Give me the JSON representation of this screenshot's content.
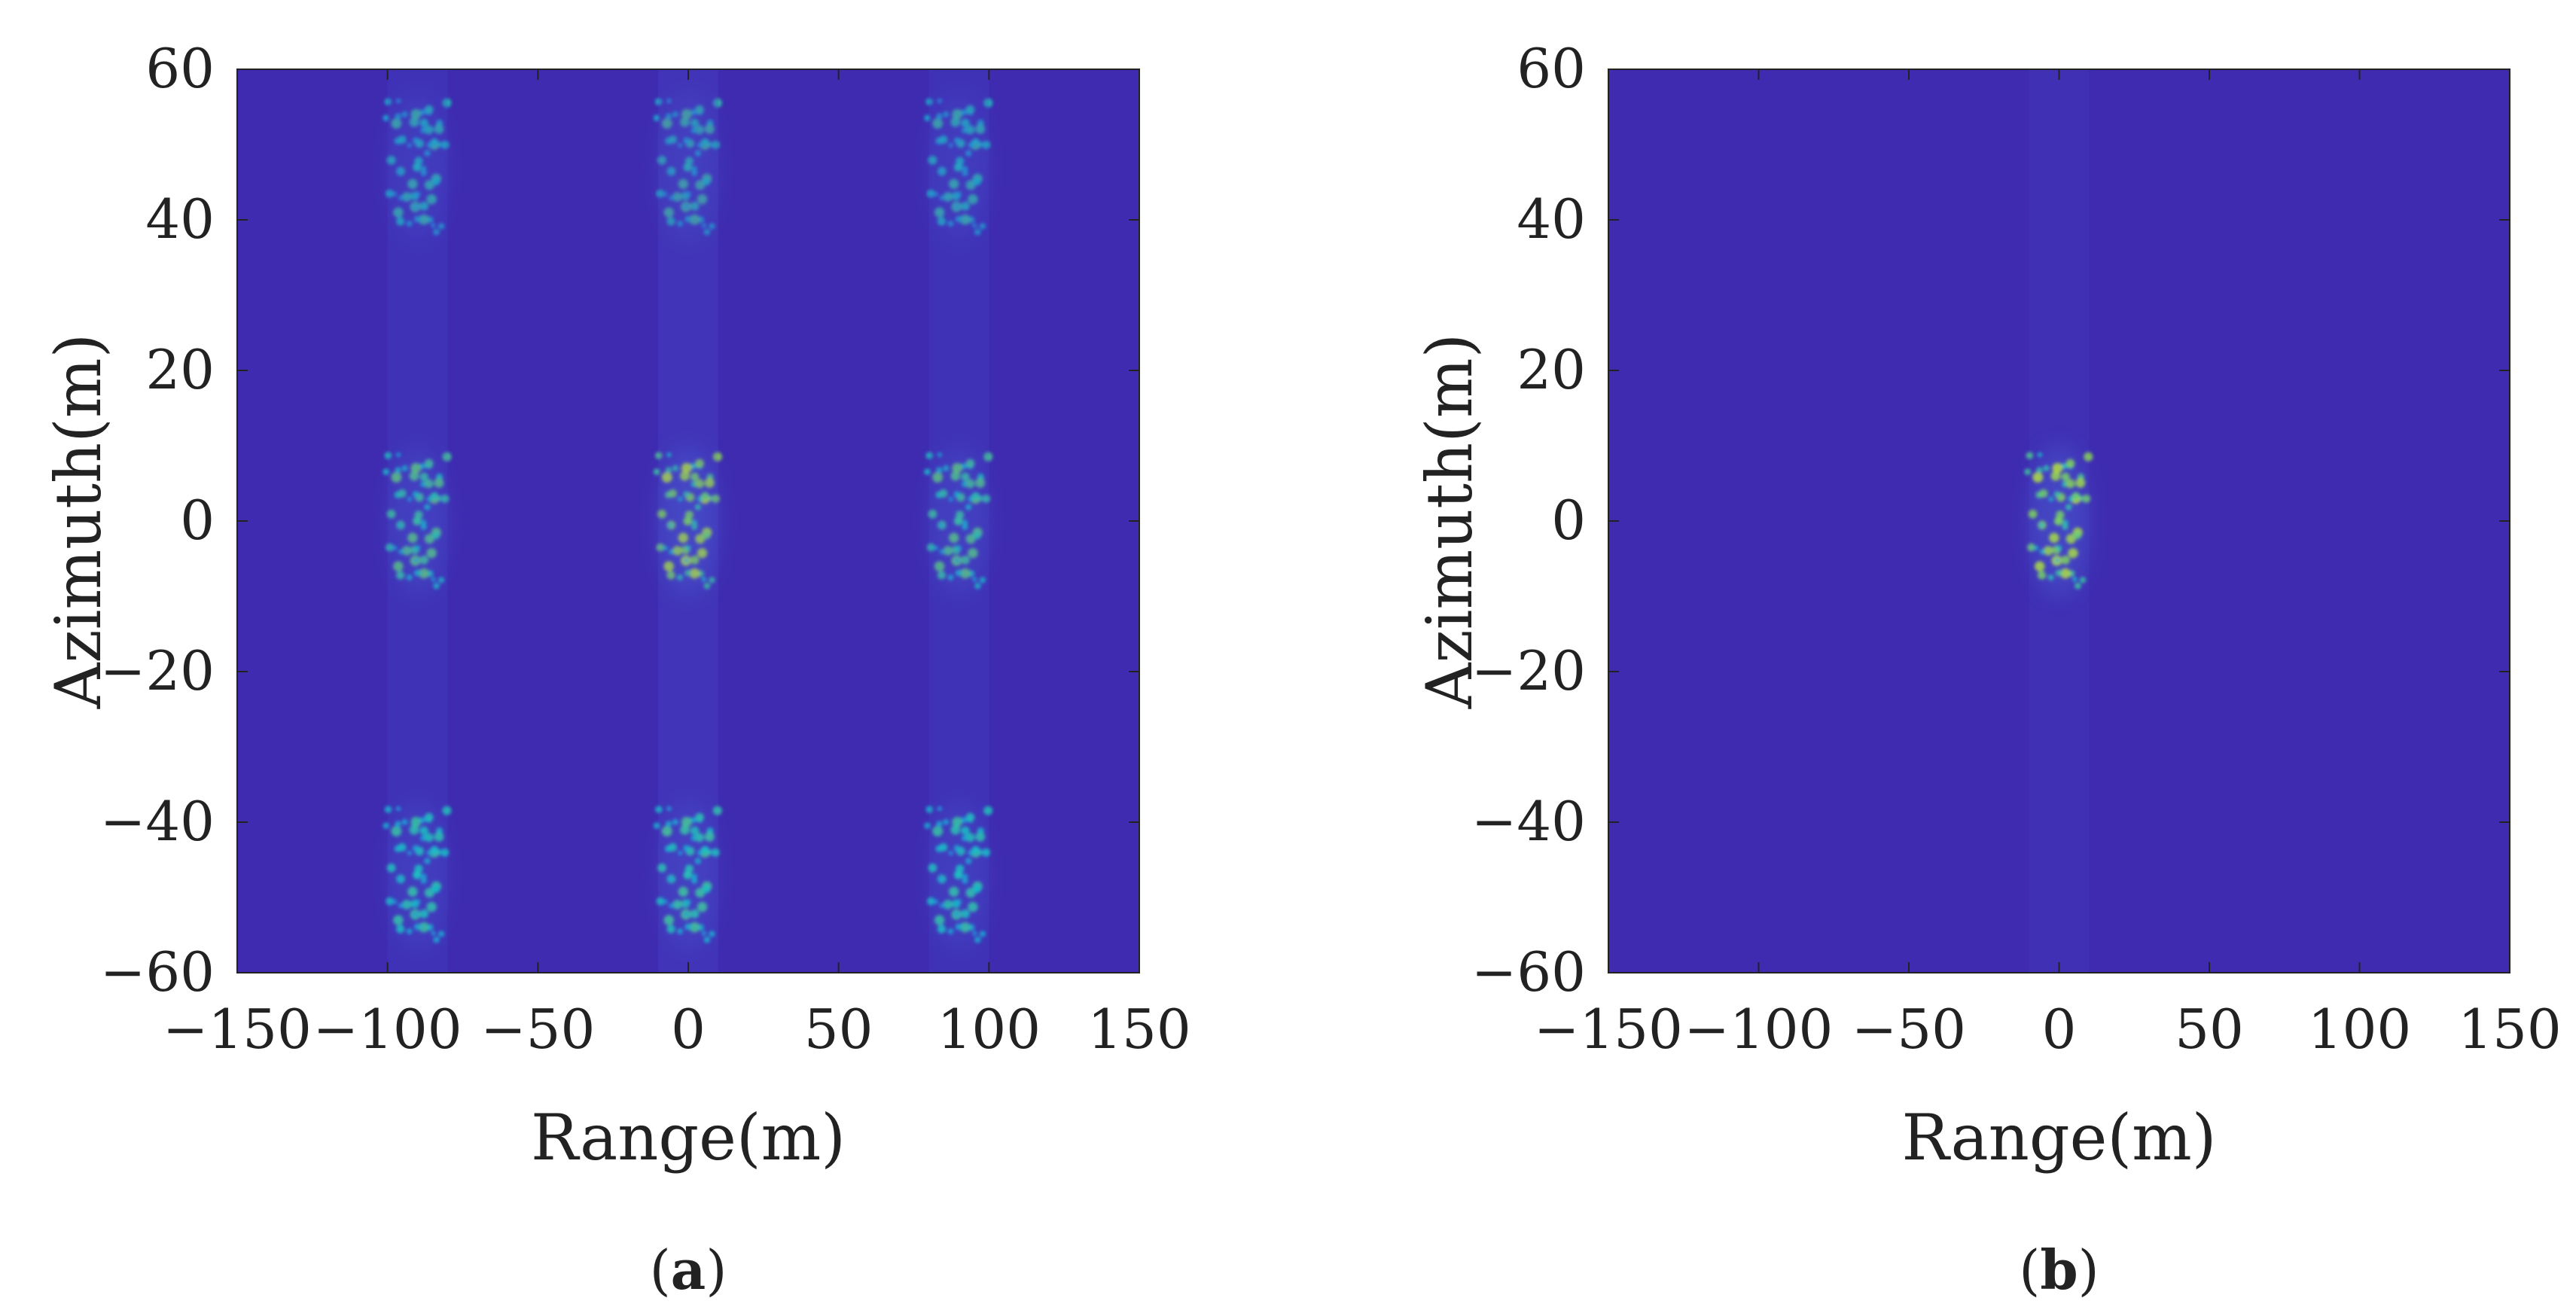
{
  "chart_data": [
    {
      "type": "heatmap",
      "panel_label": "a",
      "xlabel": "Range(m)",
      "ylabel": "Azimuth(m)",
      "xlim": [
        -150,
        150
      ],
      "ylim": [
        -60,
        60
      ],
      "xticks": [
        -150,
        -100,
        -50,
        0,
        50,
        100,
        150
      ],
      "yticks": [
        60,
        40,
        20,
        0,
        -20,
        -40,
        -60
      ],
      "xtick_labels": [
        "−150",
        "−100",
        "−50",
        "0",
        "50",
        "100",
        "150"
      ],
      "ytick_labels": [
        "60",
        "40",
        "20",
        "0",
        "−20",
        "−40",
        "−60"
      ],
      "grid": false,
      "colormap": "parula",
      "background_color": "#3e2bb0",
      "target_images": [
        {
          "range": -90,
          "azimuth": 47,
          "intensity": 0.55
        },
        {
          "range": 0,
          "azimuth": 47,
          "intensity": 0.6
        },
        {
          "range": 90,
          "azimuth": 47,
          "intensity": 0.55
        },
        {
          "range": -90,
          "azimuth": 0,
          "intensity": 0.7
        },
        {
          "range": 0,
          "azimuth": 0,
          "intensity": 1.0
        },
        {
          "range": 90,
          "azimuth": 0,
          "intensity": 0.7
        },
        {
          "range": -90,
          "azimuth": -47,
          "intensity": 0.55
        },
        {
          "range": 0,
          "azimuth": -47,
          "intensity": 0.6
        },
        {
          "range": 90,
          "azimuth": -47,
          "intensity": 0.55
        }
      ]
    },
    {
      "type": "heatmap",
      "panel_label": "b",
      "xlabel": "Range(m)",
      "ylabel": "Azimuth(m)",
      "xlim": [
        -150,
        150
      ],
      "ylim": [
        -60,
        60
      ],
      "xticks": [
        -150,
        -100,
        -50,
        0,
        50,
        100,
        150
      ],
      "yticks": [
        60,
        40,
        20,
        0,
        -20,
        -40,
        -60
      ],
      "xtick_labels": [
        "−150",
        "−100",
        "−50",
        "0",
        "50",
        "100",
        "150"
      ],
      "ytick_labels": [
        "60",
        "40",
        "20",
        "0",
        "−20",
        "−40",
        "−60"
      ],
      "grid": false,
      "colormap": "parula",
      "background_color": "#3e2bb0",
      "target_images": [
        {
          "range": 0,
          "azimuth": 0,
          "intensity": 1.0
        }
      ]
    }
  ]
}
